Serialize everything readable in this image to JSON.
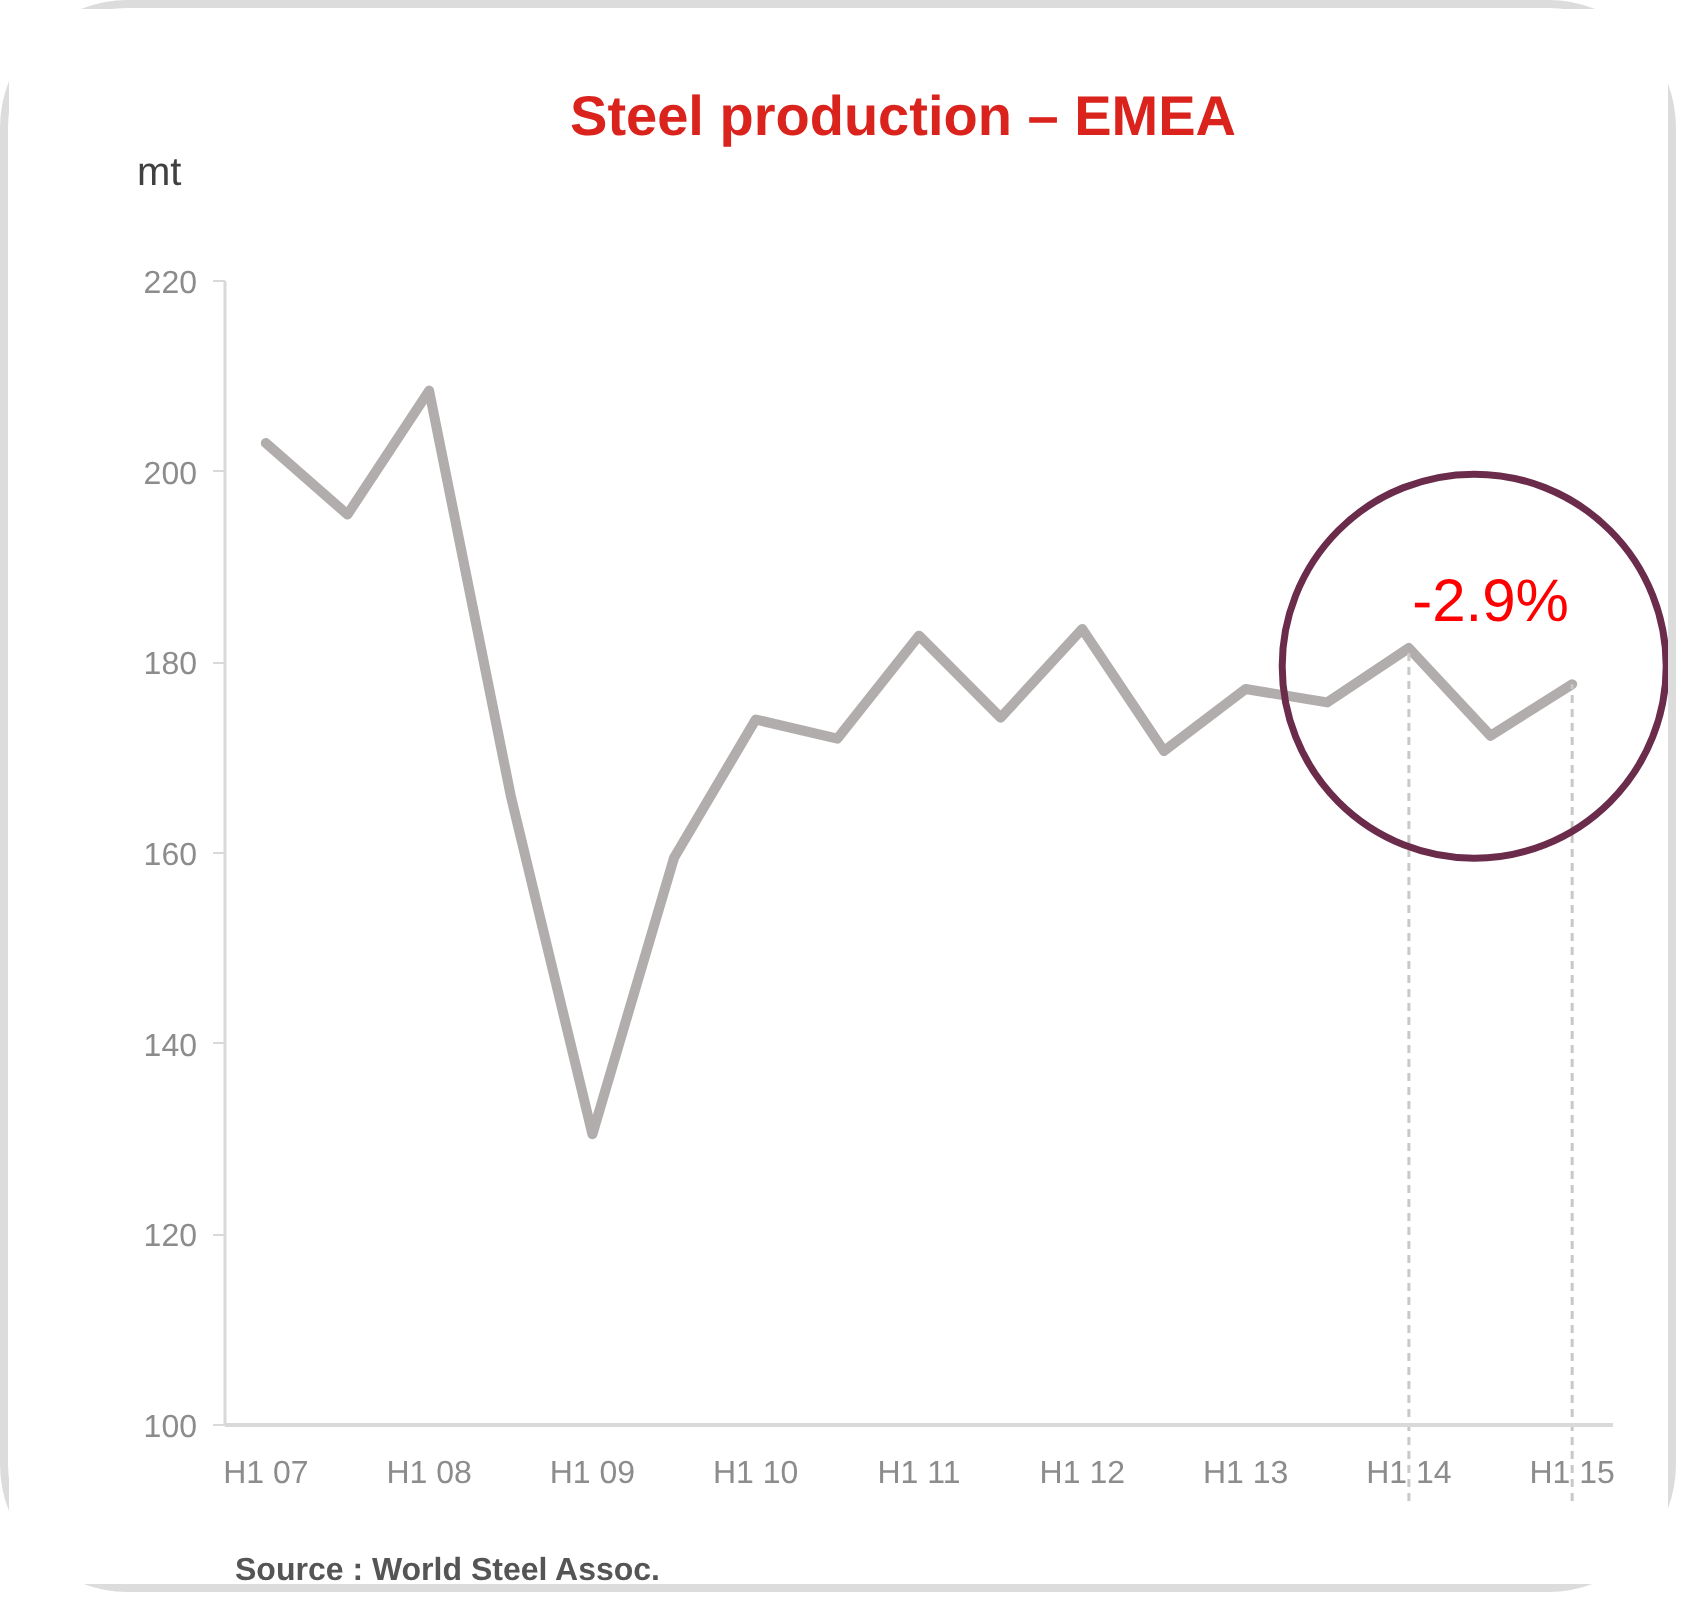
{
  "chart_data": {
    "type": "line",
    "title": "Steel production – EMEA",
    "ylabel": "mt",
    "categories": [
      "H1 07",
      null,
      "H1 08",
      null,
      "H1 09",
      null,
      "H1 10",
      null,
      "H1 11",
      null,
      "H1 12",
      null,
      "H1 13",
      null,
      "H1 14",
      null,
      "H1 15"
    ],
    "series": [
      {
        "color": "#b1adac",
        "values": [
          203.0,
          195.5,
          208.5,
          166.0,
          130.5,
          159.5,
          174.0,
          172.0,
          182.8,
          174.2,
          183.5,
          170.7,
          177.2,
          175.8,
          181.5,
          172.3,
          177.7
        ]
      }
    ],
    "ylim": [
      100,
      220
    ],
    "yticks": [
      100,
      120,
      140,
      160,
      180,
      200,
      220
    ],
    "line_style": "solid",
    "ref_lines": [
      {
        "axis": "x",
        "value": "H1 14",
        "color": "#c8c8c8",
        "line_style": "dashed"
      },
      {
        "axis": "x",
        "value": "H1 15",
        "color": "#c8c8c8",
        "line_style": "dashed"
      }
    ],
    "annotations": [
      "-2.9%",
      "Source : World Steel Assoc."
    ]
  }
}
